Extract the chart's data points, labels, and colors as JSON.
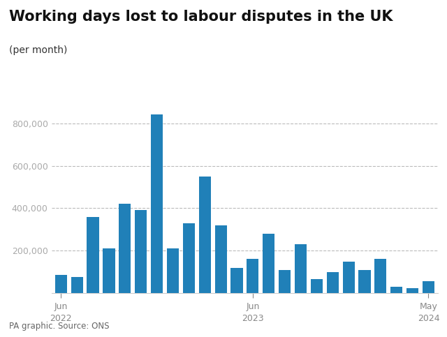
{
  "title": "Working days lost to labour disputes in the UK",
  "subtitle": "(per month)",
  "footer": "PA graphic. Source: ONS",
  "bar_color": "#2080b8",
  "background_color": "#ffffff",
  "ytick_color": "#aaaaaa",
  "xtick_color": "#888888",
  "grid_color": "#bbbbbb",
  "values": [
    85000,
    75000,
    360000,
    210000,
    420000,
    390000,
    840000,
    210000,
    330000,
    550000,
    320000,
    120000,
    160000,
    280000,
    110000,
    230000,
    65000,
    100000,
    150000,
    110000,
    160000,
    30000,
    25000,
    55000
  ],
  "ylim": [
    0,
    920000
  ],
  "yticks": [
    200000,
    400000,
    600000,
    800000
  ],
  "xtick_positions": [
    0,
    12,
    23
  ],
  "xtick_labels": [
    "Jun\n2022",
    "Jun\n2023",
    "May\n2024"
  ],
  "title_fontsize": 15,
  "subtitle_fontsize": 10,
  "footer_fontsize": 8.5,
  "ytick_fontsize": 9,
  "xtick_fontsize": 9
}
